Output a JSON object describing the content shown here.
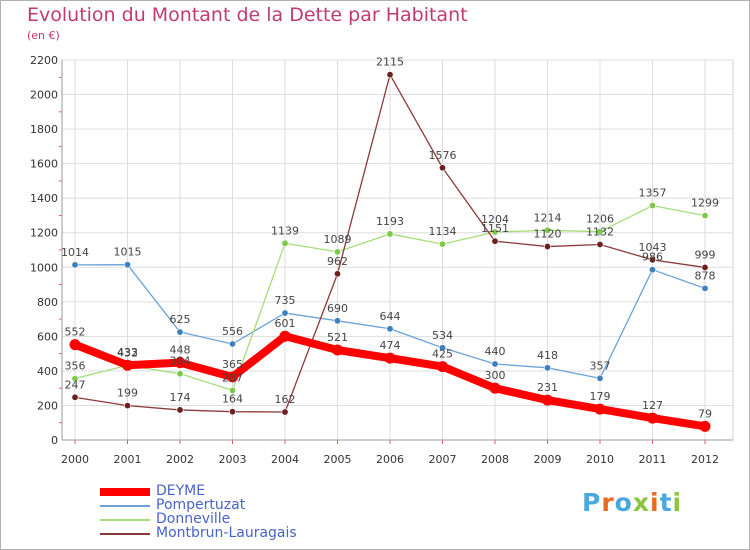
{
  "title": "Evolution du Montant de la Dette par Habitant",
  "subtitle": "(en €)",
  "chart_data": {
    "type": "line",
    "title": "Evolution du Montant de la Dette par Habitant",
    "subtitle": "(en €)",
    "xlabel": "",
    "ylabel": "",
    "x": [
      "2000",
      "2001",
      "2002",
      "2003",
      "2004",
      "2005",
      "2006",
      "2007",
      "2008",
      "2009",
      "2010",
      "2011",
      "2012"
    ],
    "ylim": [
      0,
      2200
    ],
    "yticks": [
      0,
      200,
      400,
      600,
      800,
      1000,
      1200,
      1400,
      1600,
      1800,
      2000,
      2200
    ],
    "grid": true,
    "legend_position": "bottom-left",
    "series": [
      {
        "name": "DEYME",
        "color": "#ff0000",
        "point_color": "#ff0000",
        "width": 8,
        "values": [
          552,
          433,
          448,
          365,
          601,
          521,
          474,
          425,
          300,
          231,
          179,
          127,
          79
        ],
        "labels": [
          "552",
          "433",
          "448",
          "365",
          "601",
          "521",
          "474",
          "425",
          "300",
          "231",
          "179",
          "127",
          "79"
        ]
      },
      {
        "name": "Pompertuzat",
        "color": "#6ba3d8",
        "point_color": "#3d7fc0",
        "width": 1.3,
        "values": [
          1014,
          1015,
          625,
          556,
          735,
          690,
          644,
          534,
          440,
          418,
          357,
          986,
          878
        ],
        "labels": [
          "1014",
          "1015",
          "625",
          "556",
          "735",
          "690",
          "644",
          "534",
          "440",
          "418",
          "357",
          "986",
          "878"
        ]
      },
      {
        "name": "Donneville",
        "color": "#a6dd7a",
        "point_color": "#7cc84a",
        "width": 1.3,
        "values": [
          356,
          432,
          384,
          287,
          1139,
          1089,
          1193,
          1134,
          1204,
          1214,
          1206,
          1357,
          1299
        ],
        "labels": [
          "356",
          "432",
          "384",
          "287",
          "1139",
          "1089",
          "1193",
          "1134",
          "1204",
          "1214",
          "1206",
          "1357",
          "1299"
        ]
      },
      {
        "name": "Montbrun-Lauragais",
        "color": "#8b3a3a",
        "point_color": "#6e1f1f",
        "width": 1.3,
        "values": [
          247,
          199,
          174,
          164,
          162,
          962,
          2115,
          1576,
          1151,
          1120,
          1132,
          1043,
          999
        ],
        "labels": [
          "247",
          "199",
          "174",
          "164",
          "162",
          "962",
          "2115",
          "1576",
          "1151",
          "1120",
          "1132",
          "1043",
          "999"
        ]
      }
    ]
  },
  "logo": {
    "letters": [
      "P",
      "r",
      "o",
      "x",
      "i",
      "t",
      "i"
    ],
    "colors": [
      "#4aa8e0",
      "#e86b1f",
      "#4aa8e0",
      "#8cc63f",
      "#e86b1f",
      "#4aa8e0",
      "#8cc63f"
    ]
  }
}
